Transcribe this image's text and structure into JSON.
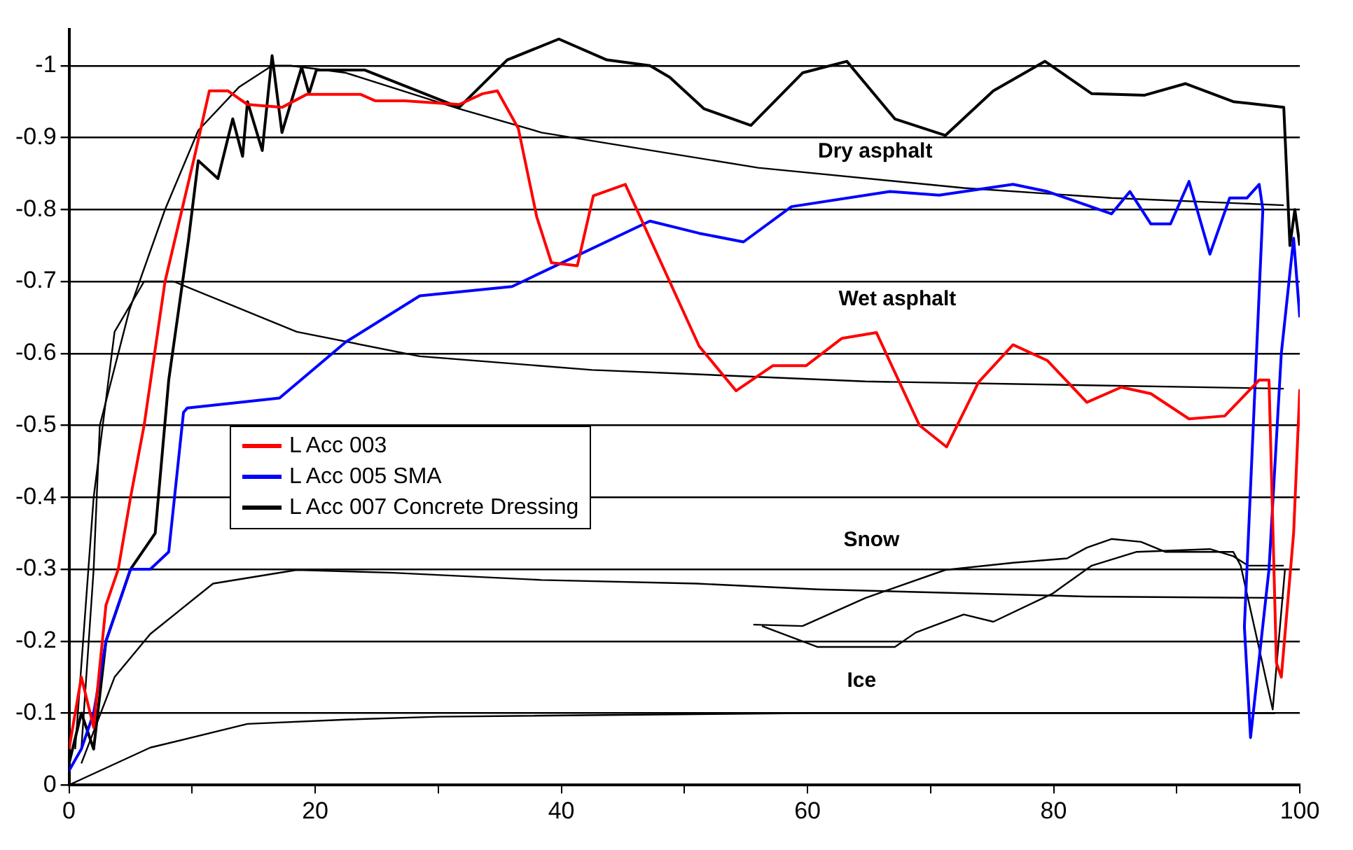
{
  "chart_data": {
    "type": "line",
    "xlim": [
      0,
      100
    ],
    "xticks": [
      0,
      {
        "value": 10,
        "label": null
      },
      20,
      {
        "value": 30,
        "label": null
      },
      40,
      {
        "value": 50,
        "label": null
      },
      60,
      {
        "value": 70,
        "label": null
      },
      80,
      {
        "value": 90,
        "label": null
      },
      100
    ],
    "ylim": [
      0,
      -1.05
    ],
    "yticks": [
      0,
      -0.1,
      -0.2,
      -0.3,
      -0.4,
      -0.5,
      -0.6,
      -0.7,
      -0.8,
      -0.9,
      -1
    ],
    "grid": "y",
    "legend": "bottom left",
    "marker": "none",
    "line_style": "solid",
    "annotations": [
      "Dry asphalt",
      "Wet asphalt",
      "Snow",
      "Ice"
    ],
    "series": [
      {
        "name": "L Acc 003",
        "color": "#ff0000",
        "x": [
          0,
          1,
          2,
          3,
          4,
          5,
          6.1,
          7.8,
          10.2,
          11.4,
          12.9,
          14.5,
          17.3,
          19.3,
          23.7,
          24.9,
          27.3,
          31.7,
          33.6,
          34.8,
          36.5,
          38,
          39.2,
          41.3,
          42.6,
          45.2,
          51.2,
          54.2,
          57.2,
          59.9,
          62.8,
          65.6,
          69.1,
          71.3,
          73.9,
          76.7,
          79.5,
          82.7,
          85.5,
          87.9,
          91,
          93.9,
          96.7,
          97.5,
          98.1,
          98.5,
          99.5,
          100
        ],
        "values": [
          -0.05,
          -0.15,
          -0.08,
          -0.25,
          -0.3,
          -0.4,
          -0.5,
          -0.7,
          -0.874,
          -0.965,
          -0.965,
          -0.946,
          -0.942,
          -0.96,
          -0.96,
          -0.951,
          -0.951,
          -0.946,
          -0.961,
          -0.965,
          -0.913,
          -0.79,
          -0.726,
          -0.722,
          -0.819,
          -0.835,
          -0.61,
          -0.548,
          -0.583,
          -0.583,
          -0.621,
          -0.629,
          -0.5,
          -0.47,
          -0.56,
          -0.612,
          -0.59,
          -0.532,
          -0.553,
          -0.544,
          -0.509,
          -0.513,
          -0.563,
          -0.563,
          -0.17,
          -0.15,
          -0.35,
          -0.55
        ]
      },
      {
        "name": "L Acc 005 SMA",
        "color": "#0000ff",
        "x": [
          0,
          1,
          2,
          3,
          5,
          6.6,
          8.1,
          9.3,
          9.6,
          17.1,
          22.5,
          28.5,
          36,
          47.2,
          51.2,
          54.8,
          58.7,
          66.7,
          70.7,
          76.7,
          79.5,
          84.7,
          86.2,
          87.9,
          89.5,
          91,
          92.7,
          94.3,
          95.7,
          96.7,
          97,
          95.5,
          96,
          97.5,
          98.5,
          99.5,
          100
        ],
        "values": [
          -0.02,
          -0.05,
          -0.1,
          -0.2,
          -0.3,
          -0.3,
          -0.324,
          -0.518,
          -0.524,
          -0.538,
          -0.616,
          -0.68,
          -0.693,
          -0.784,
          -0.767,
          -0.755,
          -0.804,
          -0.825,
          -0.82,
          -0.835,
          -0.825,
          -0.794,
          -0.825,
          -0.78,
          -0.78,
          -0.839,
          -0.738,
          -0.816,
          -0.816,
          -0.835,
          -0.8,
          -0.22,
          -0.066,
          -0.3,
          -0.6,
          -0.76,
          -0.65
        ]
      },
      {
        "name": "L Acc 007 Concrete Dressing",
        "color": "#000000",
        "x": [
          0,
          1,
          2,
          3,
          4,
          5,
          7,
          8.1,
          9.7,
          10.5,
          12.1,
          13.3,
          14.1,
          14.5,
          15.7,
          16.5,
          17.3,
          18.9,
          19.5,
          20.1,
          24,
          31.7,
          35.6,
          39.8,
          43.7,
          47.2,
          48.8,
          51.6,
          55.4,
          59.6,
          63.2,
          67.1,
          71.2,
          75.1,
          79.3,
          83.1,
          87.4,
          90.7,
          94.6,
          98.7,
          99.2,
          99.6,
          100
        ],
        "values": [
          -0.03,
          -0.1,
          -0.05,
          -0.2,
          -0.25,
          -0.3,
          -0.35,
          -0.563,
          -0.757,
          -0.868,
          -0.843,
          -0.926,
          -0.874,
          -0.95,
          -0.882,
          -1.014,
          -0.907,
          -0.998,
          -0.961,
          -0.994,
          -0.994,
          -0.942,
          -1.008,
          -1.037,
          -1.008,
          -1,
          -0.984,
          -0.94,
          -0.917,
          -0.99,
          -1.006,
          -0.926,
          -0.903,
          -0.965,
          -1.006,
          -0.961,
          -0.959,
          -0.975,
          -0.95,
          -0.942,
          -0.75,
          -0.8,
          -0.75
        ]
      },
      {
        "color": "#000000",
        "x": [
          1,
          2,
          2.5,
          4.9,
          7.8,
          10.5,
          13.8,
          16.5,
          18,
          22.5,
          31.7,
          38.4,
          48.8,
          56,
          72.7,
          84.7,
          98.7
        ],
        "values": [
          -0.05,
          -0.3,
          -0.5,
          -0.66,
          -0.8,
          -0.91,
          -0.97,
          -1,
          -1,
          -0.99,
          -0.94,
          -0.907,
          -0.878,
          -0.858,
          -0.83,
          -0.816,
          -0.806
        ]
      },
      {
        "color": "#000000",
        "x": [
          0.5,
          2,
          3.7,
          6.1,
          8.5,
          18.5,
          28.5,
          42.5,
          51,
          64.7,
          98.7
        ],
        "values": [
          -0.05,
          -0.4,
          -0.63,
          -0.7,
          -0.7,
          -0.63,
          -0.596,
          -0.577,
          -0.571,
          -0.561,
          -0.551
        ]
      },
      {
        "color": "#000000",
        "x": [
          1,
          3.7,
          6.6,
          11.7,
          18.5,
          26.4,
          38.4,
          51,
          60.8,
          82.7,
          98.7
        ],
        "values": [
          -0.03,
          -0.15,
          -0.21,
          -0.28,
          -0.299,
          -0.295,
          -0.285,
          -0.28,
          -0.272,
          -0.262,
          -0.26
        ]
      },
      {
        "color": "#000000",
        "x": [
          0,
          1,
          6.6,
          14.5,
          22.5,
          30,
          60,
          98
        ],
        "values": [
          0,
          -0.008,
          -0.052,
          -0.085,
          -0.091,
          -0.095,
          -0.1,
          -0.1
        ]
      },
      {
        "color": "#000000",
        "x": [
          55.6,
          59.6,
          64.7,
          71.2,
          76.7,
          81.1,
          82.7,
          84.7,
          87.1,
          89.1,
          94.6,
          95.2,
          97.8,
          98.8
        ],
        "values": [
          -0.223,
          -0.221,
          -0.26,
          -0.299,
          -0.309,
          -0.315,
          -0.33,
          -0.342,
          -0.338,
          -0.324,
          -0.324,
          -0.305,
          -0.105,
          -0.3
        ]
      },
      {
        "color": "#000000",
        "x": [
          56.3,
          60.8,
          67.1,
          68.8,
          72.7,
          75.1,
          79.9,
          83.1,
          86.7,
          92.7,
          94.6,
          95.8,
          98.7
        ],
        "values": [
          -0.221,
          -0.192,
          -0.192,
          -0.212,
          -0.237,
          -0.227,
          -0.266,
          -0.305,
          -0.324,
          -0.328,
          -0.318,
          -0.305,
          -0.305
        ]
      }
    ]
  }
}
